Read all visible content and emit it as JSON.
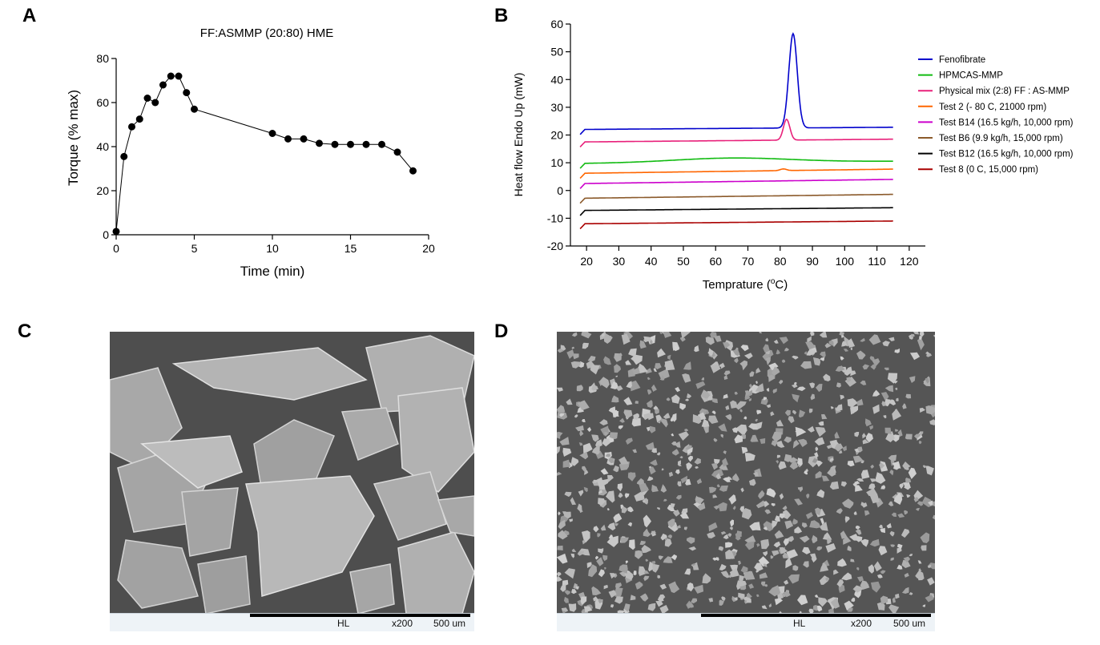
{
  "panels": {
    "a_label": "A",
    "b_label": "B",
    "c_label": "C",
    "d_label": "D"
  },
  "chart_data": [
    {
      "type": "line",
      "title": "FF:ASMMP (20:80) HME",
      "xlabel": "Time (min)",
      "ylabel": "Torque (% max)",
      "xlim": [
        0,
        20
      ],
      "ylim": [
        0,
        80
      ],
      "xticks": [
        "0",
        "5",
        "10",
        "15",
        "20"
      ],
      "yticks": [
        "0",
        "20",
        "40",
        "60",
        "80"
      ],
      "x": [
        0,
        0.5,
        1,
        1.5,
        2,
        2.5,
        3,
        3.5,
        4,
        4.5,
        5,
        10,
        11,
        12,
        13,
        14,
        15,
        16,
        17,
        18,
        19
      ],
      "y": [
        1.5,
        35.5,
        49,
        52.5,
        62,
        60,
        68,
        72,
        72,
        64.5,
        57,
        46,
        43.5,
        43.5,
        41.5,
        41,
        41,
        41,
        41,
        37.5,
        29
      ],
      "color": "#000000",
      "marker": "filled-circle"
    },
    {
      "type": "line",
      "title": "",
      "xlabel": "Temprature (",
      "xlabel_sup": "o",
      "xlabel_end": "C)",
      "ylabel": "Heat flow Endo Up (mW)",
      "xlim": [
        15,
        125
      ],
      "ylim": [
        -20,
        60
      ],
      "xticks": [
        "20",
        "30",
        "40",
        "50",
        "60",
        "70",
        "80",
        "90",
        "100",
        "110",
        "120"
      ],
      "yticks": [
        "60",
        "50",
        "40",
        "30",
        "20",
        "10",
        "0",
        "-10",
        "-20"
      ],
      "legend_position": "right",
      "series": [
        {
          "name": "Fenofibrate",
          "color": "#0000cc",
          "base": 22.0,
          "drift": 0.8,
          "peak": {
            "center": 84,
            "height": 34,
            "width": 1.3
          },
          "x_start": 18
        },
        {
          "name": "HPMCAS-MMP",
          "color": "#11bb11",
          "base": 10.2,
          "drift": 0.8,
          "hump": {
            "center": 65,
            "height": 1.6,
            "width": 18
          },
          "x_start": 18
        },
        {
          "name": "Physical mix (2:8) FF : AS-MMP",
          "color": "#e8207a",
          "base": 17.5,
          "drift": 1.0,
          "peak": {
            "center": 82,
            "height": 7.5,
            "width": 1.0
          },
          "x_start": 18
        },
        {
          "name": "Test 2 (- 80 C, 21000 rpm)",
          "color": "#ff6600",
          "base": 6.2,
          "drift": 1.5,
          "peak": {
            "center": 81,
            "height": 0.6,
            "width": 1.0
          },
          "x_start": 18
        },
        {
          "name": "Test B14 (16.5 kg/h, 10,000 rpm)",
          "color": "#cc00cc",
          "base": 2.5,
          "drift": 1.5,
          "x_start": 18
        },
        {
          "name": "Test B6 (9.9 kg/h, 15,000 rpm)",
          "color": "#8b5a2b",
          "base": -2.8,
          "drift": 1.4,
          "x_start": 18
        },
        {
          "name": "Test B12 (16.5 kg/h, 10,000 rpm)",
          "color": "#000000",
          "base": -7.2,
          "drift": 1.0,
          "x_start": 18
        },
        {
          "name": "Test 8 (0 C, 15,000 rpm)",
          "color": "#aa0000",
          "base": -12.0,
          "drift": 1.0,
          "x_start": 18
        }
      ]
    }
  ],
  "sem_c": {
    "left_code": "HL",
    "mag": "x200",
    "scale": "500 um"
  },
  "sem_d": {
    "left_code": "HL",
    "mag": "x200",
    "scale": "500 um"
  }
}
